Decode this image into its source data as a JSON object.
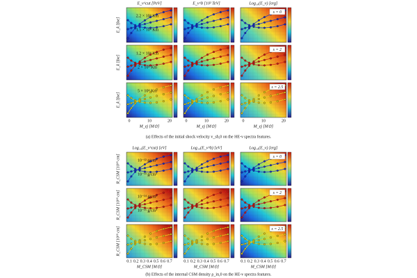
{
  "figure_a": {
    "column_titles": [
      "E_ν^cut [PeV]",
      "E_ν^b [10² TeV]",
      "Log₁₀(E_ν) [erg]"
    ],
    "row_labels": [
      "s = 0",
      "s = 2",
      "s = 2.5"
    ],
    "y_label": "E_k [foe]",
    "x_label": "M_ej [M⊙]",
    "x_ticks": [
      "0",
      "10",
      "20"
    ],
    "annotations": [
      "2.2 × 10⁴ Km",
      "1.5 × 10⁴ Km",
      "1.2 × 10⁴ Km",
      "2 × 10⁴ Km",
      "5 × 10⁴ Km"
    ],
    "caption": "(a) Effects of the initial shock velocity v_sh,0 on the HE-ν spectra features."
  },
  "figure_b": {
    "column_titles": [
      "Log₁₀(E_ν^cut) [eV]",
      "Log₁₀(E_ν^b) [eV]",
      "Log₁₀(E_ν) [erg]"
    ],
    "row_labels": [
      "s = 0",
      "s = 2",
      "s = 2.5"
    ],
    "y_label": "R_CSM [10¹⁵ cm]",
    "x_label": "M_CSM [M⊙]",
    "x_ticks": [
      "0.1",
      "0.2",
      "0.3",
      "0.4",
      "0.5",
      "0.6",
      "0.7"
    ],
    "annotations": [
      "10⁻¹² g/cm³",
      "10⁻¹³ g/cm³",
      "10⁻¹⁴ g/cm³",
      "10⁻¹⁵ g/cm³"
    ],
    "caption": "(b) Effects of the internal CSM density ρ_in,0 on the HE-ν spectra features."
  }
}
